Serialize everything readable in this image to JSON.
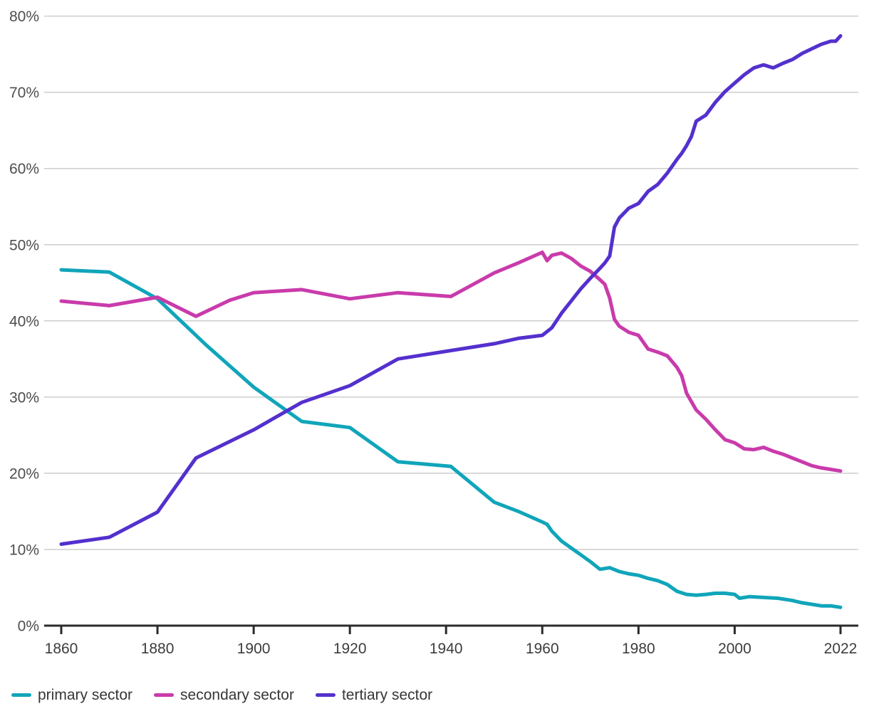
{
  "chart_data": {
    "type": "line",
    "title": "",
    "xlabel": "",
    "ylabel": "",
    "xlim": [
      1860,
      2022
    ],
    "ylim": [
      0,
      80
    ],
    "grid": "horizontal",
    "legend_position": "bottom-left",
    "x_ticks": [
      1860,
      1880,
      1900,
      1920,
      1940,
      1960,
      1980,
      2000,
      2022
    ],
    "y_ticks": [
      0,
      10,
      20,
      30,
      40,
      50,
      60,
      70,
      80
    ],
    "y_tick_suffix": "%",
    "series": [
      {
        "name": "primary sector",
        "color": "#10a5ba",
        "points": [
          [
            1860,
            46.7
          ],
          [
            1870,
            46.4
          ],
          [
            1880,
            42.9
          ],
          [
            1890,
            36.9
          ],
          [
            1900,
            31.3
          ],
          [
            1910,
            26.8
          ],
          [
            1920,
            26.0
          ],
          [
            1930,
            21.5
          ],
          [
            1941,
            20.9
          ],
          [
            1950,
            16.2
          ],
          [
            1955,
            15.0
          ],
          [
            1960,
            13.6
          ],
          [
            1961,
            13.3
          ],
          [
            1962,
            12.4
          ],
          [
            1964,
            11.1
          ],
          [
            1966,
            10.2
          ],
          [
            1968,
            9.3
          ],
          [
            1970,
            8.4
          ],
          [
            1972,
            7.4
          ],
          [
            1974,
            7.6
          ],
          [
            1976,
            7.1
          ],
          [
            1978,
            6.8
          ],
          [
            1980,
            6.6
          ],
          [
            1982,
            6.2
          ],
          [
            1984,
            5.9
          ],
          [
            1986,
            5.4
          ],
          [
            1988,
            4.5
          ],
          [
            1990,
            4.1
          ],
          [
            1992,
            4.0
          ],
          [
            1994,
            4.1
          ],
          [
            1996,
            4.25
          ],
          [
            1998,
            4.25
          ],
          [
            2000,
            4.1
          ],
          [
            2001,
            3.6
          ],
          [
            2003,
            3.8
          ],
          [
            2006,
            3.7
          ],
          [
            2009,
            3.6
          ],
          [
            2012,
            3.3
          ],
          [
            2014,
            3.0
          ],
          [
            2016,
            2.8
          ],
          [
            2018,
            2.6
          ],
          [
            2020,
            2.6
          ],
          [
            2022,
            2.4
          ]
        ]
      },
      {
        "name": "secondary sector",
        "color": "#c93bab",
        "points": [
          [
            1860,
            42.6
          ],
          [
            1870,
            42.0
          ],
          [
            1880,
            43.1
          ],
          [
            1888,
            40.6
          ],
          [
            1895,
            42.7
          ],
          [
            1900,
            43.7
          ],
          [
            1910,
            44.1
          ],
          [
            1920,
            42.9
          ],
          [
            1930,
            43.7
          ],
          [
            1941,
            43.2
          ],
          [
            1950,
            46.3
          ],
          [
            1955,
            47.6
          ],
          [
            1960,
            49.0
          ],
          [
            1961,
            47.9
          ],
          [
            1962,
            48.6
          ],
          [
            1964,
            48.9
          ],
          [
            1966,
            48.2
          ],
          [
            1968,
            47.2
          ],
          [
            1970,
            46.5
          ],
          [
            1972,
            45.4
          ],
          [
            1973,
            44.8
          ],
          [
            1974,
            43.0
          ],
          [
            1975,
            40.2
          ],
          [
            1976,
            39.3
          ],
          [
            1978,
            38.5
          ],
          [
            1980,
            38.1
          ],
          [
            1982,
            36.3
          ],
          [
            1984,
            35.9
          ],
          [
            1986,
            35.4
          ],
          [
            1988,
            33.9
          ],
          [
            1989,
            32.8
          ],
          [
            1990,
            30.5
          ],
          [
            1992,
            28.3
          ],
          [
            1994,
            27.1
          ],
          [
            1996,
            25.7
          ],
          [
            1998,
            24.4
          ],
          [
            2000,
            24.0
          ],
          [
            2002,
            23.2
          ],
          [
            2004,
            23.1
          ],
          [
            2006,
            23.4
          ],
          [
            2008,
            22.9
          ],
          [
            2010,
            22.5
          ],
          [
            2012,
            22.0
          ],
          [
            2014,
            21.5
          ],
          [
            2016,
            21.0
          ],
          [
            2018,
            20.7
          ],
          [
            2020,
            20.5
          ],
          [
            2022,
            20.3
          ]
        ]
      },
      {
        "name": "tertiary sector",
        "color": "#5430ce",
        "points": [
          [
            1860,
            10.7
          ],
          [
            1870,
            11.6
          ],
          [
            1880,
            14.9
          ],
          [
            1888,
            22.0
          ],
          [
            1900,
            25.7
          ],
          [
            1910,
            29.3
          ],
          [
            1920,
            31.5
          ],
          [
            1930,
            35.0
          ],
          [
            1941,
            36.1
          ],
          [
            1950,
            37.0
          ],
          [
            1955,
            37.7
          ],
          [
            1960,
            38.1
          ],
          [
            1961,
            38.6
          ],
          [
            1962,
            39.1
          ],
          [
            1964,
            41.0
          ],
          [
            1966,
            42.6
          ],
          [
            1968,
            44.2
          ],
          [
            1970,
            45.6
          ],
          [
            1972,
            46.9
          ],
          [
            1973,
            47.6
          ],
          [
            1974,
            48.5
          ],
          [
            1975,
            52.3
          ],
          [
            1976,
            53.5
          ],
          [
            1978,
            54.8
          ],
          [
            1980,
            55.4
          ],
          [
            1982,
            57.0
          ],
          [
            1984,
            57.9
          ],
          [
            1986,
            59.4
          ],
          [
            1988,
            61.2
          ],
          [
            1989,
            62.0
          ],
          [
            1990,
            63.0
          ],
          [
            1991,
            64.2
          ],
          [
            1992,
            66.2
          ],
          [
            1994,
            67.0
          ],
          [
            1996,
            68.7
          ],
          [
            1998,
            70.1
          ],
          [
            2000,
            71.2
          ],
          [
            2002,
            72.3
          ],
          [
            2004,
            73.2
          ],
          [
            2006,
            73.6
          ],
          [
            2008,
            73.2
          ],
          [
            2010,
            73.8
          ],
          [
            2012,
            74.3
          ],
          [
            2014,
            75.1
          ],
          [
            2016,
            75.7
          ],
          [
            2018,
            76.3
          ],
          [
            2020,
            76.7
          ],
          [
            2021,
            76.7
          ],
          [
            2022,
            77.4
          ]
        ]
      }
    ]
  },
  "colors": {
    "background": "#ffffff",
    "gridline": "#cdcdcd",
    "axis_line": "#2b2b2b",
    "y_tick_label": "#4e4e4e",
    "x_tick_label": "#3c3c3c",
    "legend_text": "#363636",
    "primary_sector": "#10a5ba",
    "secondary_sector": "#c93bab",
    "tertiary_sector": "#5430ce"
  }
}
